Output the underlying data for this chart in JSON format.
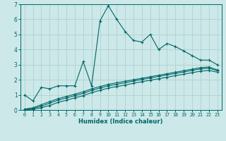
{
  "background_color": "#cce8e8",
  "grid_color": "#aacccc",
  "line_color": "#006666",
  "xlabel": "Humidex (Indice chaleur)",
  "xlim": [
    -0.5,
    23.5
  ],
  "ylim": [
    0,
    7
  ],
  "xticks": [
    0,
    1,
    2,
    3,
    4,
    5,
    6,
    7,
    8,
    9,
    10,
    11,
    12,
    13,
    14,
    15,
    16,
    17,
    18,
    19,
    20,
    21,
    22,
    23
  ],
  "yticks": [
    0,
    1,
    2,
    3,
    4,
    5,
    6,
    7
  ],
  "series1_x": [
    0,
    1,
    2,
    3,
    4,
    5,
    6,
    7,
    8,
    9,
    10,
    11,
    12,
    13,
    14,
    15,
    16,
    17,
    18,
    19,
    20,
    21,
    22,
    23
  ],
  "series1_y": [
    1.0,
    0.6,
    1.5,
    1.4,
    1.6,
    1.6,
    1.6,
    3.2,
    1.6,
    5.9,
    6.9,
    6.0,
    5.2,
    4.6,
    4.5,
    5.0,
    4.0,
    4.4,
    4.2,
    3.9,
    3.6,
    3.3,
    3.3,
    3.0
  ],
  "series2_x": [
    0,
    1,
    2,
    3,
    4,
    5,
    6,
    7,
    8,
    9,
    10,
    11,
    12,
    13,
    14,
    15,
    16,
    17,
    18,
    19,
    20,
    21,
    22,
    23
  ],
  "series2_y": [
    0.05,
    0.15,
    0.35,
    0.55,
    0.75,
    0.9,
    1.05,
    1.2,
    1.4,
    1.55,
    1.7,
    1.8,
    1.9,
    2.0,
    2.1,
    2.2,
    2.3,
    2.4,
    2.5,
    2.6,
    2.7,
    2.8,
    2.85,
    2.65
  ],
  "series3_x": [
    0,
    1,
    2,
    3,
    4,
    5,
    6,
    7,
    8,
    9,
    10,
    11,
    12,
    13,
    14,
    15,
    16,
    17,
    18,
    19,
    20,
    21,
    22,
    23
  ],
  "series3_y": [
    0.05,
    0.1,
    0.25,
    0.45,
    0.65,
    0.8,
    0.95,
    1.1,
    1.3,
    1.45,
    1.6,
    1.7,
    1.8,
    1.92,
    2.02,
    2.12,
    2.22,
    2.32,
    2.42,
    2.52,
    2.62,
    2.72,
    2.77,
    2.6
  ],
  "series4_x": [
    0,
    1,
    2,
    3,
    4,
    5,
    6,
    7,
    8,
    9,
    10,
    11,
    12,
    13,
    14,
    15,
    16,
    17,
    18,
    19,
    20,
    21,
    22,
    23
  ],
  "series4_y": [
    0.0,
    0.05,
    0.15,
    0.3,
    0.5,
    0.65,
    0.8,
    0.95,
    1.15,
    1.3,
    1.45,
    1.55,
    1.65,
    1.77,
    1.87,
    1.97,
    2.07,
    2.17,
    2.27,
    2.37,
    2.47,
    2.57,
    2.62,
    2.5
  ]
}
